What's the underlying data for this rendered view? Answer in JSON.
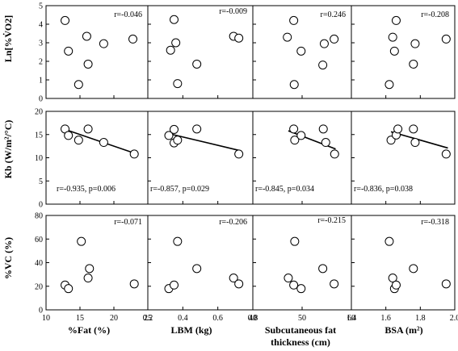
{
  "chart_data": [
    {
      "id": "p00",
      "type": "scatter",
      "row": 0,
      "col": 0,
      "ylabel": "Ln[%V̇O2]",
      "xlabel": "",
      "ylim": [
        0,
        5
      ],
      "yticks": [
        0,
        1,
        2,
        3,
        4,
        5
      ],
      "xlim": [
        10,
        25
      ],
      "xticks": [],
      "annotation": "r=-0.046",
      "points": [
        {
          "x": 12.8,
          "y": 4.2
        },
        {
          "x": 13.3,
          "y": 2.55
        },
        {
          "x": 14.8,
          "y": 0.75
        },
        {
          "x": 16.0,
          "y": 3.35
        },
        {
          "x": 16.2,
          "y": 1.85
        },
        {
          "x": 18.5,
          "y": 2.95
        },
        {
          "x": 22.8,
          "y": 3.2
        }
      ],
      "trend": null
    },
    {
      "id": "p01",
      "type": "scatter",
      "row": 0,
      "col": 1,
      "ylabel": "",
      "xlabel": "",
      "ylim": [
        0,
        5
      ],
      "yticks": [],
      "xlim": [
        0.2,
        0.8
      ],
      "xticks": [],
      "annotation": "r=-0.009",
      "points": [
        {
          "x": 0.33,
          "y": 2.6
        },
        {
          "x": 0.35,
          "y": 4.25
        },
        {
          "x": 0.36,
          "y": 3.0
        },
        {
          "x": 0.37,
          "y": 0.8
        },
        {
          "x": 0.48,
          "y": 1.85
        },
        {
          "x": 0.69,
          "y": 3.35
        },
        {
          "x": 0.72,
          "y": 3.25
        }
      ],
      "trend": null
    },
    {
      "id": "p02",
      "type": "scatter",
      "row": 0,
      "col": 2,
      "ylabel": "",
      "xlabel": "",
      "ylim": [
        0,
        5
      ],
      "yticks": [],
      "xlim": [
        40,
        60
      ],
      "xticks": [],
      "annotation": "r=0.246",
      "points": [
        {
          "x": 47.0,
          "y": 3.3
        },
        {
          "x": 48.3,
          "y": 4.2
        },
        {
          "x": 48.4,
          "y": 0.75
        },
        {
          "x": 49.8,
          "y": 2.55
        },
        {
          "x": 54.2,
          "y": 1.8
        },
        {
          "x": 54.5,
          "y": 2.95
        },
        {
          "x": 56.5,
          "y": 3.2
        }
      ],
      "trend": null
    },
    {
      "id": "p03",
      "type": "scatter",
      "row": 0,
      "col": 3,
      "ylabel": "",
      "xlabel": "",
      "ylim": [
        0,
        5
      ],
      "yticks": [],
      "xlim": [
        1.4,
        2.0
      ],
      "xticks": [],
      "annotation": "r=-0.208",
      "points": [
        {
          "x": 1.62,
          "y": 0.75
        },
        {
          "x": 1.64,
          "y": 3.3
        },
        {
          "x": 1.65,
          "y": 2.55
        },
        {
          "x": 1.66,
          "y": 4.2
        },
        {
          "x": 1.76,
          "y": 1.85
        },
        {
          "x": 1.77,
          "y": 2.95
        },
        {
          "x": 1.95,
          "y": 3.2
        }
      ],
      "trend": null
    },
    {
      "id": "p10",
      "type": "scatter",
      "row": 1,
      "col": 0,
      "ylabel": "Kb (W/m²/°C)",
      "xlabel": "",
      "ylim": [
        0,
        20
      ],
      "yticks": [
        0,
        5,
        10,
        15,
        20
      ],
      "xlim": [
        10,
        25
      ],
      "xticks": [],
      "annotation": "r=-0.935, p=0.006",
      "points": [
        {
          "x": 12.8,
          "y": 16.2
        },
        {
          "x": 13.3,
          "y": 14.8
        },
        {
          "x": 14.8,
          "y": 13.8
        },
        {
          "x": 16.2,
          "y": 16.2
        },
        {
          "x": 18.5,
          "y": 13.3
        },
        {
          "x": 23.0,
          "y": 10.8
        }
      ],
      "trend": {
        "x1": 12.8,
        "y1": 16.1,
        "x2": 23.0,
        "y2": 11.0
      }
    },
    {
      "id": "p11",
      "type": "scatter",
      "row": 1,
      "col": 1,
      "ylabel": "",
      "xlabel": "",
      "ylim": [
        0,
        20
      ],
      "yticks": [],
      "xlim": [
        0.2,
        0.8
      ],
      "xticks": [],
      "annotation": "r=-0.857, p=0.029",
      "points": [
        {
          "x": 0.32,
          "y": 14.8
        },
        {
          "x": 0.35,
          "y": 16.1
        },
        {
          "x": 0.35,
          "y": 13.2
        },
        {
          "x": 0.37,
          "y": 13.8
        },
        {
          "x": 0.48,
          "y": 16.2
        },
        {
          "x": 0.72,
          "y": 10.8
        }
      ],
      "trend": {
        "x1": 0.32,
        "y1": 15.2,
        "x2": 0.72,
        "y2": 11.6
      }
    },
    {
      "id": "p12",
      "type": "scatter",
      "row": 1,
      "col": 2,
      "ylabel": "",
      "xlabel": "",
      "ylim": [
        0,
        20
      ],
      "yticks": [],
      "xlim": [
        40,
        60
      ],
      "xticks": [],
      "annotation": "r=-0.845, p=0.034",
      "points": [
        {
          "x": 48.3,
          "y": 16.2
        },
        {
          "x": 48.5,
          "y": 13.8
        },
        {
          "x": 49.8,
          "y": 14.8
        },
        {
          "x": 54.3,
          "y": 16.2
        },
        {
          "x": 54.8,
          "y": 13.3
        },
        {
          "x": 56.6,
          "y": 10.8
        }
      ],
      "trend": {
        "x1": 47.2,
        "y1": 15.8,
        "x2": 56.8,
        "y2": 11.9
      }
    },
    {
      "id": "p13",
      "type": "scatter",
      "row": 1,
      "col": 3,
      "ylabel": "",
      "xlabel": "",
      "ylim": [
        0,
        20
      ],
      "yticks": [],
      "xlim": [
        1.4,
        2.0
      ],
      "xticks": [],
      "annotation": "r=-0.836, p=0.038",
      "points": [
        {
          "x": 1.63,
          "y": 13.8
        },
        {
          "x": 1.66,
          "y": 14.9
        },
        {
          "x": 1.67,
          "y": 16.2
        },
        {
          "x": 1.76,
          "y": 16.2
        },
        {
          "x": 1.77,
          "y": 13.3
        },
        {
          "x": 1.95,
          "y": 10.8
        }
      ],
      "trend": {
        "x1": 1.63,
        "y1": 15.6,
        "x2": 1.96,
        "y2": 12.1
      }
    },
    {
      "id": "p20",
      "type": "scatter",
      "row": 2,
      "col": 0,
      "ylabel": "%VC (%)",
      "xlabel": "%Fat (%)",
      "ylim": [
        0,
        80
      ],
      "yticks": [
        0,
        20,
        40,
        60,
        80
      ],
      "xlim": [
        10,
        25
      ],
      "xticks": [
        10,
        15,
        20,
        25
      ],
      "annotation": "r=-0.071",
      "points": [
        {
          "x": 12.8,
          "y": 21
        },
        {
          "x": 13.3,
          "y": 18
        },
        {
          "x": 15.2,
          "y": 58
        },
        {
          "x": 16.2,
          "y": 27
        },
        {
          "x": 16.4,
          "y": 35
        },
        {
          "x": 23.0,
          "y": 22
        }
      ],
      "trend": null
    },
    {
      "id": "p21",
      "type": "scatter",
      "row": 2,
      "col": 1,
      "ylabel": "",
      "xlabel": "LBM (kg)",
      "ylim": [
        0,
        80
      ],
      "yticks": [],
      "xlim": [
        0.2,
        0.8
      ],
      "xticks": [
        0.2,
        0.4,
        0.6,
        0.8
      ],
      "annotation": "r=-0.206",
      "points": [
        {
          "x": 0.32,
          "y": 18
        },
        {
          "x": 0.35,
          "y": 21
        },
        {
          "x": 0.37,
          "y": 58
        },
        {
          "x": 0.48,
          "y": 35
        },
        {
          "x": 0.69,
          "y": 27
        },
        {
          "x": 0.72,
          "y": 22
        }
      ],
      "trend": null
    },
    {
      "id": "p22",
      "type": "scatter",
      "row": 2,
      "col": 2,
      "ylabel": "",
      "xlabel": "Subcutaneous fat thickness (cm)",
      "ylim": [
        0,
        80
      ],
      "yticks": [],
      "xlim": [
        40,
        60
      ],
      "xticks": [
        40,
        50,
        60
      ],
      "annotation": "r=-0.215",
      "points": [
        {
          "x": 47.2,
          "y": 27
        },
        {
          "x": 48.3,
          "y": 21
        },
        {
          "x": 48.5,
          "y": 58
        },
        {
          "x": 49.8,
          "y": 18
        },
        {
          "x": 54.2,
          "y": 35
        },
        {
          "x": 56.5,
          "y": 22
        }
      ],
      "trend": null
    },
    {
      "id": "p23",
      "type": "scatter",
      "row": 2,
      "col": 3,
      "ylabel": "",
      "xlabel": "BSA (m²)",
      "ylim": [
        0,
        80
      ],
      "yticks": [],
      "xlim": [
        1.4,
        2.0
      ],
      "xticks": [
        1.4,
        1.6,
        1.8,
        2.0
      ],
      "annotation": "r=-0.318",
      "points": [
        {
          "x": 1.62,
          "y": 58
        },
        {
          "x": 1.64,
          "y": 27
        },
        {
          "x": 1.65,
          "y": 18
        },
        {
          "x": 1.66,
          "y": 21
        },
        {
          "x": 1.76,
          "y": 35
        },
        {
          "x": 1.95,
          "y": 22
        }
      ],
      "trend": null
    }
  ],
  "labels": {
    "row0_ylabel": "Ln[%V̇O2]",
    "row1_ylabel": "Kb (W/m²/°C)",
    "row2_ylabel": "%VC (%)",
    "col0_xlabel": "%Fat (%)",
    "col1_xlabel": "LBM (kg)",
    "col2_xlabel_line1": "Subcutaneous fat",
    "col2_xlabel_line2": "thickness (cm)",
    "col3_xlabel": "BSA (m²)"
  }
}
